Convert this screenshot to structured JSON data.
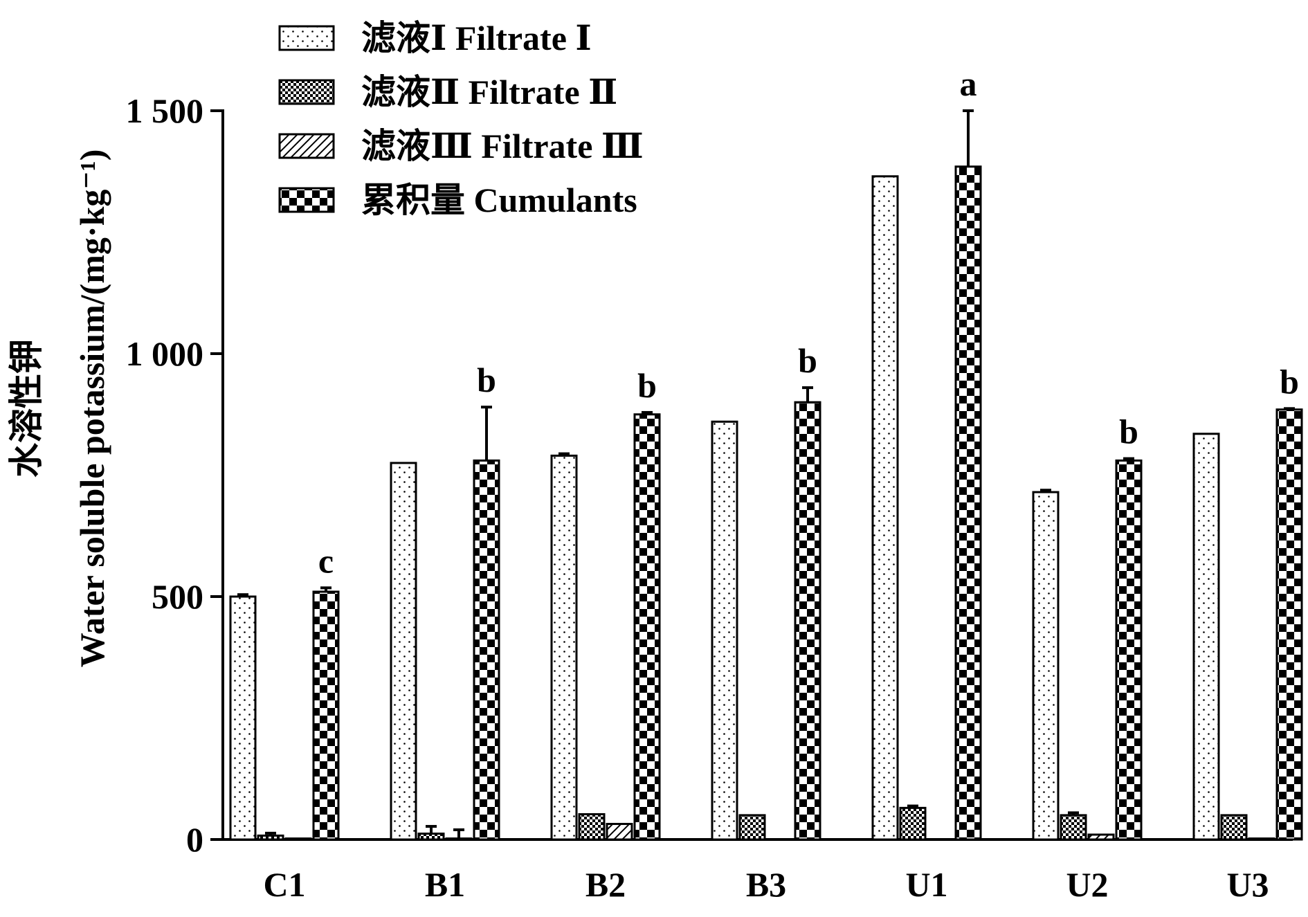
{
  "chart_data": {
    "type": "bar",
    "title": "",
    "ylabel_zh": "水溶性钾",
    "ylabel_en": "Water soluble potassium/(mg·kg⁻¹)",
    "xlabel": "",
    "ylim": [
      0,
      1500
    ],
    "yticks": [
      0,
      500,
      1000,
      1500
    ],
    "ytick_labels": [
      "0",
      "500",
      "1 000",
      "1 500"
    ],
    "grid": false,
    "legend_position": "top-left",
    "categories": [
      "C1",
      "B1",
      "B2",
      "B3",
      "U1",
      "U2",
      "U3"
    ],
    "series": [
      {
        "name": "滤液Ⅰ Filtrate Ⅰ",
        "pattern": "dots",
        "values": [
          500,
          775,
          790,
          860,
          1365,
          715,
          835
        ],
        "errors": [
          4,
          0,
          4,
          0,
          0,
          4,
          0
        ]
      },
      {
        "name": "滤液Ⅱ Filtrate Ⅱ",
        "pattern": "fine-check",
        "values": [
          8,
          12,
          52,
          50,
          65,
          50,
          50
        ],
        "errors": [
          5,
          15,
          0,
          0,
          4,
          5,
          0
        ]
      },
      {
        "name": "滤液Ⅲ Filtrate Ⅲ",
        "pattern": "diagonal",
        "values": [
          2,
          2,
          32,
          0,
          0,
          10,
          2
        ],
        "errors": [
          0,
          18,
          0,
          0,
          0,
          0,
          0
        ]
      },
      {
        "name": "累积量 Cumulants",
        "pattern": "check",
        "values": [
          510,
          780,
          875,
          900,
          1385,
          780,
          885
        ],
        "errors": [
          8,
          110,
          4,
          30,
          115,
          4,
          2
        ]
      }
    ],
    "significance": [
      "c",
      "b",
      "b",
      "b",
      "a",
      "b",
      "b"
    ]
  }
}
